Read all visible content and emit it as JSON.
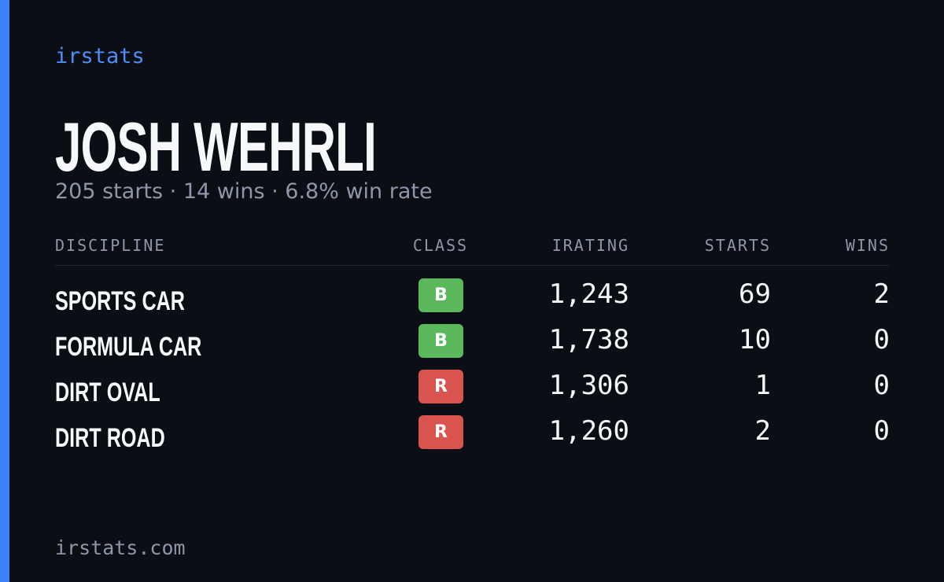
{
  "brand": "irstats",
  "driver": {
    "name": "JOSH WEHRLI",
    "summary": "205 starts · 14 wins · 6.8% win rate"
  },
  "table": {
    "columns": [
      "DISCIPLINE",
      "CLASS",
      "IRATING",
      "STARTS",
      "WINS"
    ],
    "rows": [
      [
        "SPORTS CAR",
        "B",
        "1,243",
        "69",
        "2"
      ],
      [
        "FORMULA CAR",
        "B",
        "1,738",
        "10",
        "0"
      ],
      [
        "DIRT OVAL",
        "R",
        "1,306",
        "1",
        "0"
      ],
      [
        "DIRT ROAD",
        "R",
        "1,260",
        "2",
        "0"
      ]
    ],
    "class_colors": {
      "B": "#5cb85c",
      "R": "#d9534f"
    }
  },
  "footer": "irstats.com"
}
